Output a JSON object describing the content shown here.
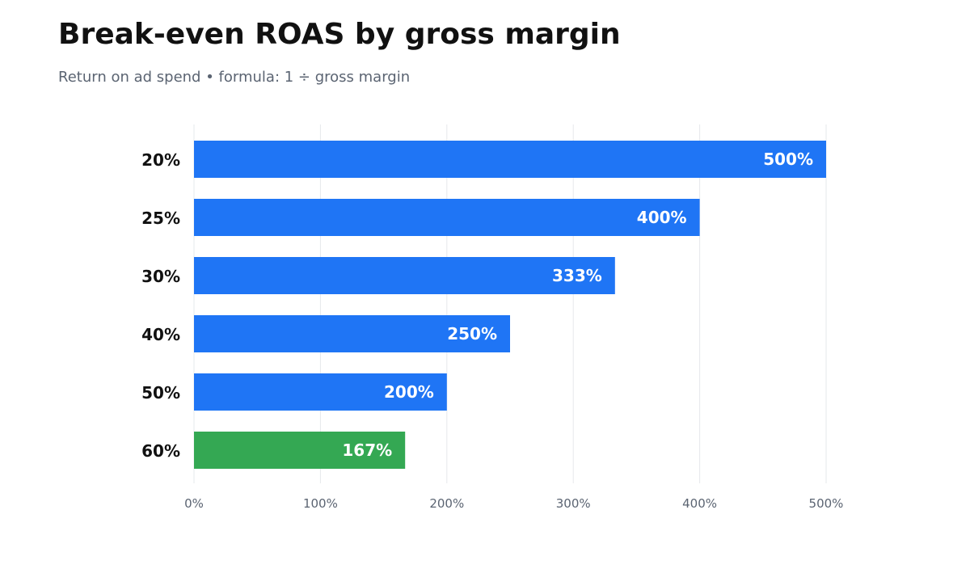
{
  "title": "Break-even ROAS by gross margin",
  "subtitle": "Return on ad spend  •  formula: 1 ÷ gross margin",
  "colors": {
    "bar_default": "#1f75f5",
    "bar_highlight": "#34a853",
    "grid": "#e6e8eb",
    "tick_text": "#5b6472",
    "category_text": "#111111",
    "value_label": "#ffffff"
  },
  "chart_data": {
    "type": "bar",
    "orientation": "horizontal",
    "title": "Break-even ROAS by gross margin",
    "subtitle": "Return on ad spend  •  formula: 1 ÷ gross margin",
    "xlabel": "",
    "ylabel": "",
    "categories": [
      "20%",
      "25%",
      "30%",
      "40%",
      "50%",
      "60%"
    ],
    "values": [
      500,
      400,
      333,
      250,
      200,
      167
    ],
    "value_labels": [
      "500%",
      "400%",
      "333%",
      "250%",
      "200%",
      "167%"
    ],
    "highlight_index": 5,
    "xlim": [
      0,
      500
    ],
    "xticks": [
      0,
      100,
      200,
      300,
      400,
      500
    ],
    "xtick_labels": [
      "0%",
      "100%",
      "200%",
      "300%",
      "400%",
      "500%"
    ],
    "grid": true,
    "legend": "none"
  }
}
